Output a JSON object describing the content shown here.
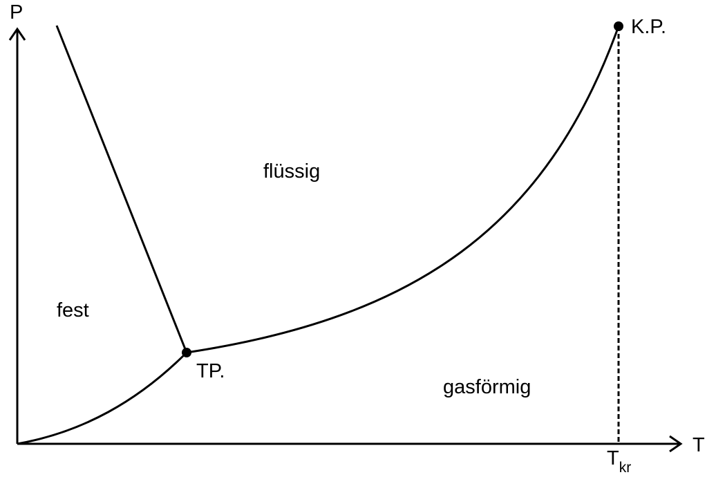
{
  "axes": {
    "y_label": "P",
    "x_label": "T"
  },
  "regions": {
    "solid": "fest",
    "liquid": "flüssig",
    "gas": "gasförmig"
  },
  "points": {
    "triple": "TP.",
    "critical": "K.P."
  },
  "critical_temperature": {
    "main": "T",
    "subscript": "kr"
  },
  "colors": {
    "line": "#000000",
    "background": "#ffffff"
  }
}
